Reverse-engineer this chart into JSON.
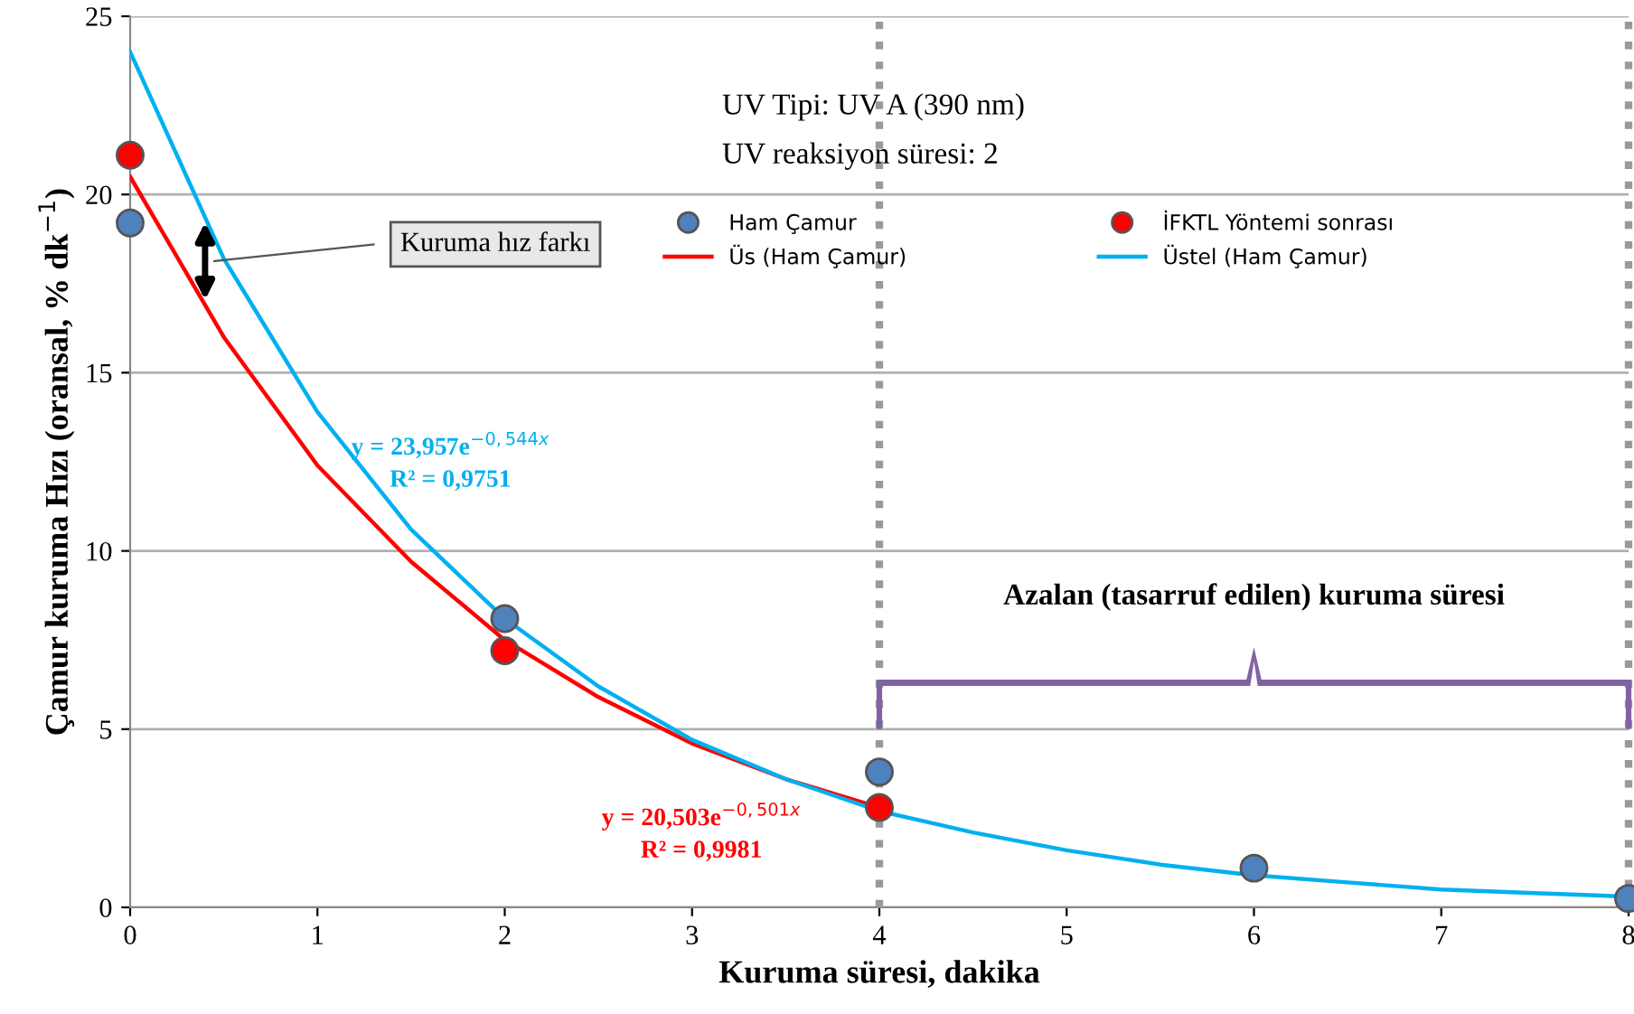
{
  "chart_data": {
    "type": "scatter",
    "xlabel": "Kuruma süresi, dakika",
    "ylabel": "Çamur kuruma Hızı (oransal, % dk$^{−1}$)",
    "xlim": [
      0,
      8
    ],
    "ylim": [
      0,
      25
    ],
    "xticks": [
      0,
      1,
      2,
      3,
      4,
      5,
      6,
      7,
      8
    ],
    "yticks": [
      0,
      5,
      10,
      15,
      20,
      25
    ],
    "grid": "y",
    "legend": "top",
    "marker": "circle",
    "series": [
      {
        "name": "Ham Çamur",
        "color": "#4f81bd",
        "x": [
          0,
          2,
          4,
          6,
          8
        ],
        "values": [
          19.2,
          8.1,
          3.8,
          1.1,
          0.25
        ]
      },
      {
        "name": "İFKTL Yöntemi sonrası",
        "color": "#ff0000",
        "x": [
          0,
          2,
          4
        ],
        "values": [
          21.1,
          7.2,
          2.8
        ]
      },
      {
        "name": "Üs (Ham Çamur)",
        "type": "line",
        "marker": "none",
        "color": "#ff0000",
        "x": [
          0,
          0.5,
          1,
          1.5,
          2,
          2.5,
          3,
          3.5,
          4
        ],
        "values": [
          20.5,
          16.0,
          12.4,
          9.7,
          7.5,
          5.9,
          4.6,
          3.6,
          2.8
        ]
      },
      {
        "name": "Üstel (Ham Çamur)",
        "type": "line",
        "marker": "none",
        "color": "#00b0f0",
        "x": [
          0,
          0.5,
          1,
          1.5,
          2,
          2.5,
          3,
          3.5,
          4,
          4.5,
          5,
          5.5,
          6,
          6.5,
          7,
          7.5,
          8
        ],
        "values": [
          24.0,
          18.2,
          13.9,
          10.6,
          8.1,
          6.2,
          4.7,
          3.6,
          2.7,
          2.1,
          1.6,
          1.2,
          0.9,
          0.7,
          0.5,
          0.4,
          0.3
        ]
      }
    ],
    "ref_lines": [
      {
        "axis": "x",
        "value": 4,
        "color": "#999999",
        "line_style": "dotted"
      },
      {
        "axis": "x",
        "value": 8,
        "color": "#999999",
        "line_style": "dotted"
      }
    ],
    "annotations": [
      "UV Tipi: UV A (390 nm)",
      "UV reaksiyon süresi: 2",
      "y = 23,957e$^{−0,544x}$",
      "R² = 0,9751",
      "y = 20,503e$^{−0,501x}$",
      "R² = 0,9981",
      "Kuruma hız farkı",
      "Azalan (tasarruf edilen) kuruma süresi"
    ]
  }
}
